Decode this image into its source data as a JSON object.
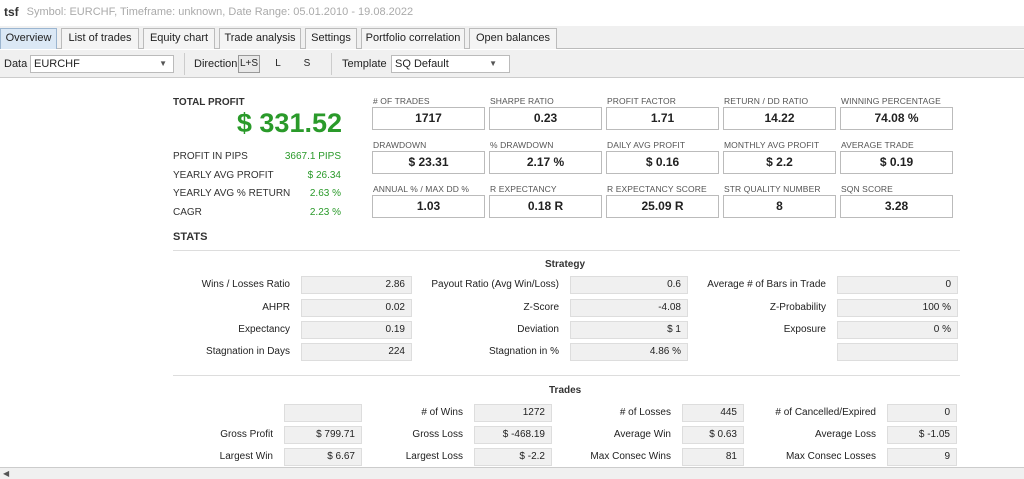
{
  "window": {
    "app": "tsf",
    "meta": "Symbol: EURCHF, Timeframe: unknown, Date Range: 05.01.2010 - 19.08.2022"
  },
  "tabs": [
    "Overview",
    "List of trades",
    "Equity chart",
    "Trade analysis",
    "Settings",
    "Portfolio correlation",
    "Open balances"
  ],
  "toolbar": {
    "data_label": "Data",
    "data_value": "EURCHF",
    "direction_label": "Direction",
    "dir_both": "L+S",
    "dir_long": "L",
    "dir_short": "S",
    "template_label": "Template",
    "template_value": "SQ Default"
  },
  "summary": {
    "total_profit_label": "TOTAL PROFIT",
    "total_profit": "$ 331.52",
    "rows": [
      {
        "label": "PROFIT IN PIPS",
        "value": "3667.1 PIPS"
      },
      {
        "label": "YEARLY AVG PROFIT",
        "value": "$ 26.34"
      },
      {
        "label": "YEARLY AVG % RETURN",
        "value": "2.63 %"
      },
      {
        "label": "CAGR",
        "value": "2.23 %"
      }
    ]
  },
  "metrics": [
    {
      "label": "# OF TRADES",
      "value": "1717"
    },
    {
      "label": "SHARPE RATIO",
      "value": "0.23"
    },
    {
      "label": "PROFIT FACTOR",
      "value": "1.71"
    },
    {
      "label": "RETURN / DD RATIO",
      "value": "14.22"
    },
    {
      "label": "WINNING PERCENTAGE",
      "value": "74.08 %"
    },
    {
      "label": "DRAWDOWN",
      "value": "$ 23.31"
    },
    {
      "label": "% DRAWDOWN",
      "value": "2.17 %"
    },
    {
      "label": "DAILY AVG PROFIT",
      "value": "$ 0.16"
    },
    {
      "label": "MONTHLY AVG PROFIT",
      "value": "$ 2.2"
    },
    {
      "label": "AVERAGE TRADE",
      "value": "$ 0.19"
    },
    {
      "label": "ANNUAL % / MAX DD %",
      "value": "1.03"
    },
    {
      "label": "R EXPECTANCY",
      "value": "0.18 R"
    },
    {
      "label": "R EXPECTANCY SCORE",
      "value": "25.09 R"
    },
    {
      "label": "STR QUALITY NUMBER",
      "value": "8"
    },
    {
      "label": "SQN SCORE",
      "value": "3.28"
    }
  ],
  "stats_title": "STATS",
  "strategy": {
    "title": "Strategy",
    "rows": [
      [
        {
          "label": "Wins / Losses Ratio",
          "value": "2.86"
        },
        {
          "label": "Payout Ratio (Avg Win/Loss)",
          "value": "0.6"
        },
        {
          "label": "Average # of Bars in Trade",
          "value": "0"
        }
      ],
      [
        {
          "label": "AHPR",
          "value": "0.02"
        },
        {
          "label": "Z-Score",
          "value": "-4.08"
        },
        {
          "label": "Z-Probability",
          "value": "100 %"
        }
      ],
      [
        {
          "label": "Expectancy",
          "value": "0.19"
        },
        {
          "label": "Deviation",
          "value": "$ 1"
        },
        {
          "label": "Exposure",
          "value": "0 %"
        }
      ],
      [
        {
          "label": "Stagnation in Days",
          "value": "224"
        },
        {
          "label": "Stagnation in %",
          "value": "4.86 %"
        },
        {
          "label": "",
          "value": ""
        }
      ]
    ]
  },
  "trades": {
    "title": "Trades",
    "rows": [
      [
        {
          "label": "",
          "value": ""
        },
        {
          "label": "# of Wins",
          "value": "1272"
        },
        {
          "label": "# of Losses",
          "value": "445"
        },
        {
          "label": "# of Cancelled/Expired",
          "value": "0"
        }
      ],
      [
        {
          "label": "Gross Profit",
          "value": "$ 799.71"
        },
        {
          "label": "Gross Loss",
          "value": "$ -468.19"
        },
        {
          "label": "Average Win",
          "value": "$ 0.63"
        },
        {
          "label": "Average Loss",
          "value": "$ -1.05"
        }
      ],
      [
        {
          "label": "Largest Win",
          "value": "$ 6.67"
        },
        {
          "label": "Largest Loss",
          "value": "$ -2.2"
        },
        {
          "label": "Max Consec Wins",
          "value": "81"
        },
        {
          "label": "Max Consec Losses",
          "value": "9"
        }
      ]
    ]
  }
}
